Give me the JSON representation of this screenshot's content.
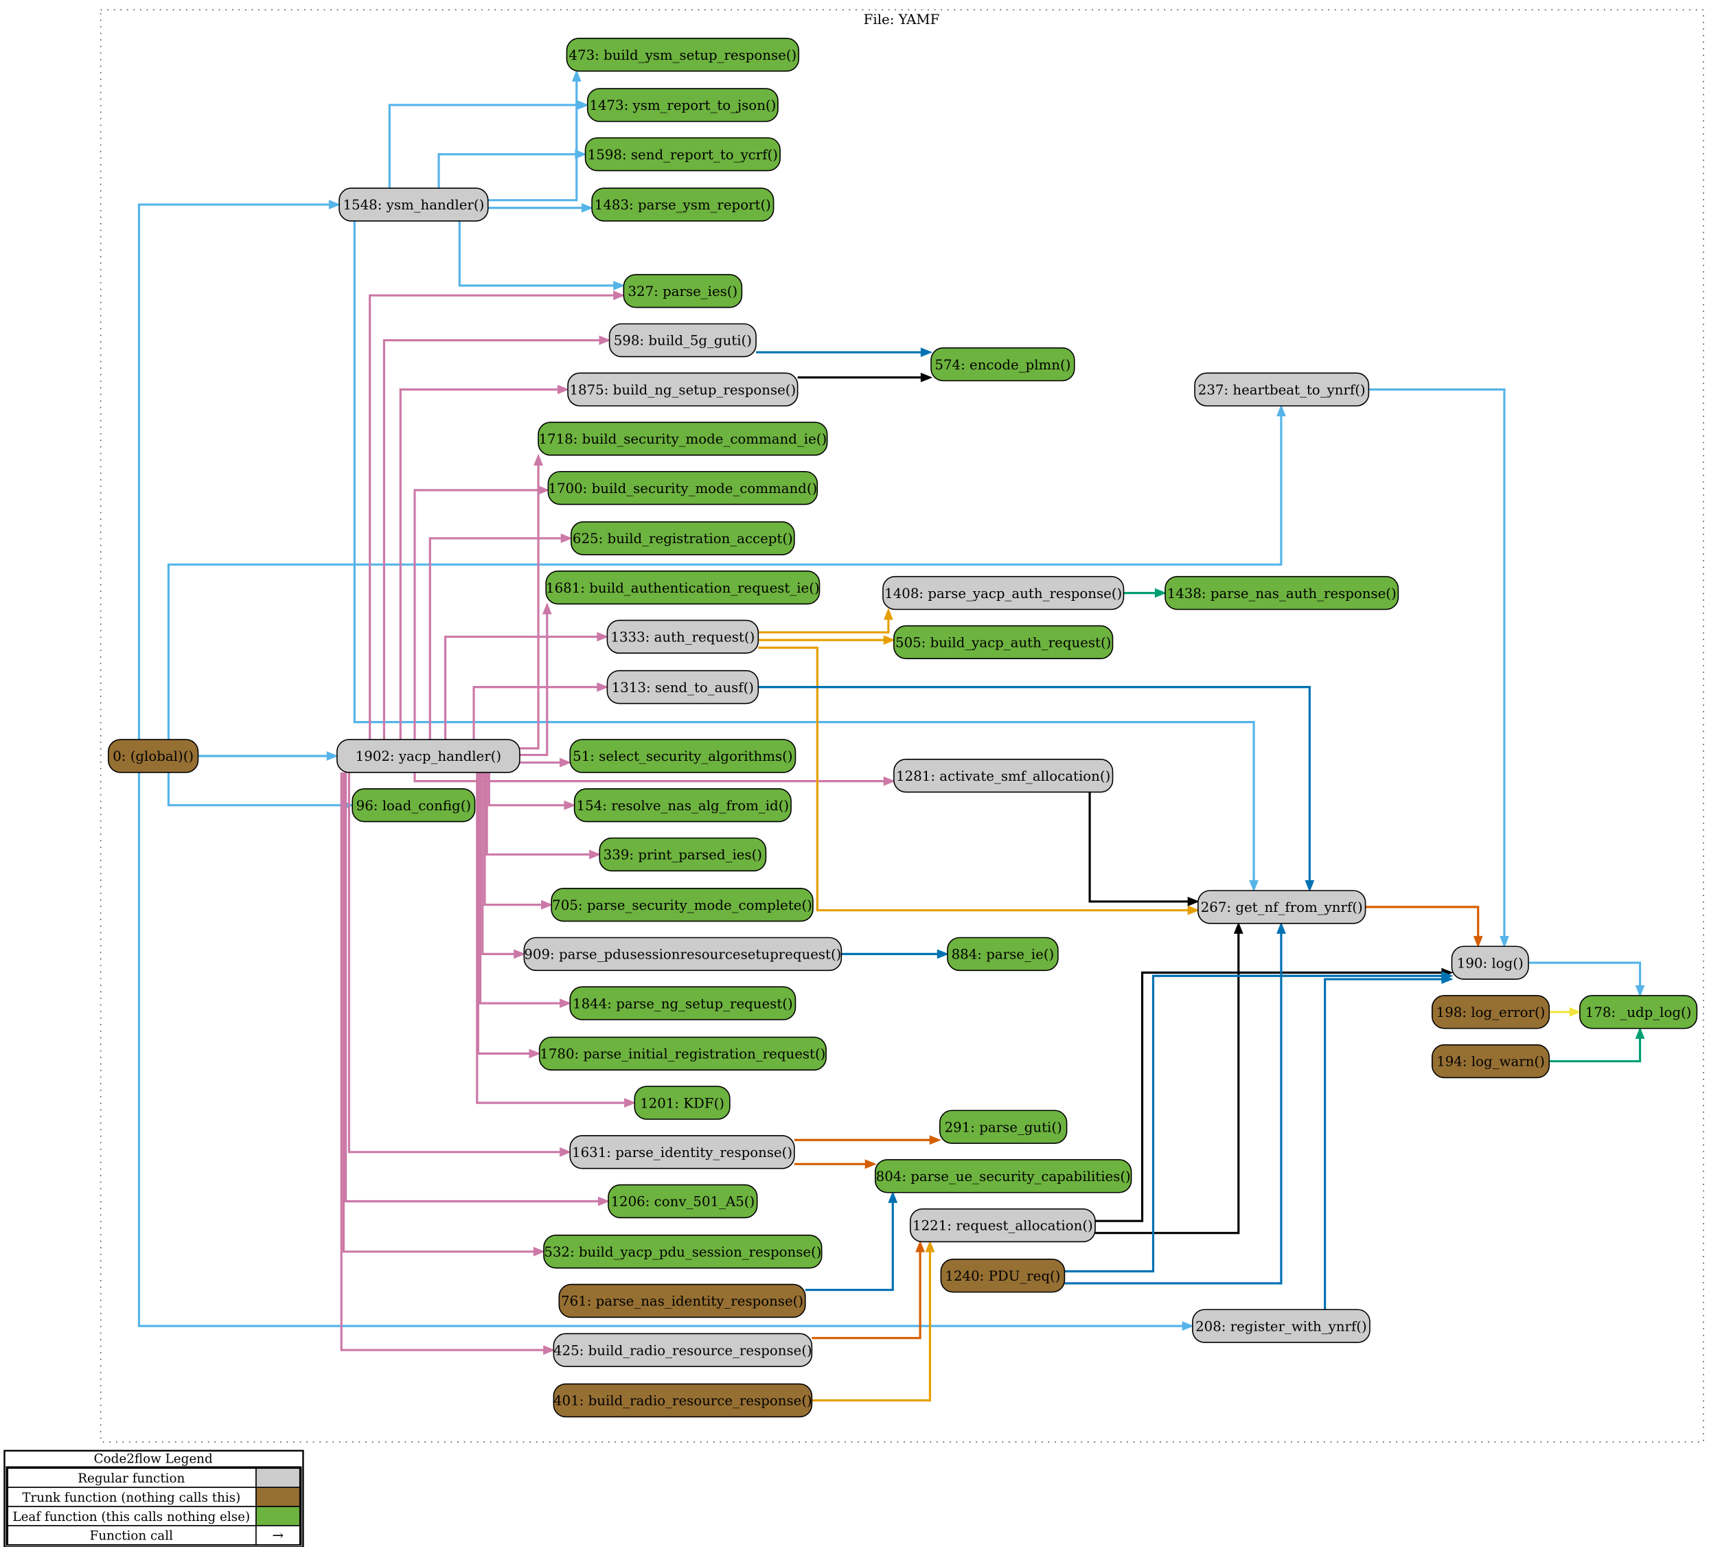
{
  "cluster_title": "File: YAMF",
  "colors": {
    "regular": "#cccccc",
    "trunk": "#966F33",
    "leaf": "#6db33f"
  },
  "nodes": [
    {
      "id": "473",
      "label": "473: build_ysm_setup_response()",
      "kind": "leaf"
    },
    {
      "id": "1473",
      "label": "1473: ysm_report_to_json()",
      "kind": "leaf"
    },
    {
      "id": "1598",
      "label": "1598: send_report_to_ycrf()",
      "kind": "leaf"
    },
    {
      "id": "1483",
      "label": "1483: parse_ysm_report()",
      "kind": "leaf"
    },
    {
      "id": "1548",
      "label": "1548: ysm_handler()",
      "kind": "regular"
    },
    {
      "id": "327",
      "label": "327: parse_ies()",
      "kind": "leaf"
    },
    {
      "id": "598",
      "label": "598: build_5g_guti()",
      "kind": "regular"
    },
    {
      "id": "574",
      "label": "574: encode_plmn()",
      "kind": "leaf"
    },
    {
      "id": "1875",
      "label": "1875: build_ng_setup_response()",
      "kind": "regular"
    },
    {
      "id": "237",
      "label": "237: heartbeat_to_ynrf()",
      "kind": "regular"
    },
    {
      "id": "1718",
      "label": "1718: build_security_mode_command_ie()",
      "kind": "leaf"
    },
    {
      "id": "1700",
      "label": "1700: build_security_mode_command()",
      "kind": "leaf"
    },
    {
      "id": "625",
      "label": "625: build_registration_accept()",
      "kind": "leaf"
    },
    {
      "id": "1681",
      "label": "1681: build_authentication_request_ie()",
      "kind": "leaf"
    },
    {
      "id": "1408",
      "label": "1408: parse_yacp_auth_response()",
      "kind": "regular"
    },
    {
      "id": "1438",
      "label": "1438: parse_nas_auth_response()",
      "kind": "leaf"
    },
    {
      "id": "1333",
      "label": "1333: auth_request()",
      "kind": "regular"
    },
    {
      "id": "505",
      "label": "505: build_yacp_auth_request()",
      "kind": "leaf"
    },
    {
      "id": "1313",
      "label": "1313: send_to_ausf()",
      "kind": "regular"
    },
    {
      "id": "0",
      "label": "0: (global)()",
      "kind": "trunk"
    },
    {
      "id": "1902",
      "label": "1902: yacp_handler()",
      "kind": "regular"
    },
    {
      "id": "51",
      "label": "51: select_security_algorithms()",
      "kind": "leaf"
    },
    {
      "id": "1281",
      "label": "1281: activate_smf_allocation()",
      "kind": "regular"
    },
    {
      "id": "96",
      "label": "96: load_config()",
      "kind": "leaf"
    },
    {
      "id": "154",
      "label": "154: resolve_nas_alg_from_id()",
      "kind": "leaf"
    },
    {
      "id": "339",
      "label": "339: print_parsed_ies()",
      "kind": "leaf"
    },
    {
      "id": "705",
      "label": "705: parse_security_mode_complete()",
      "kind": "leaf"
    },
    {
      "id": "267",
      "label": "267: get_nf_from_ynrf()",
      "kind": "regular"
    },
    {
      "id": "909",
      "label": "909: parse_pdusessionresourcesetuprequest()",
      "kind": "regular"
    },
    {
      "id": "884",
      "label": "884: parse_ie()",
      "kind": "leaf"
    },
    {
      "id": "190",
      "label": "190: log()",
      "kind": "regular"
    },
    {
      "id": "198",
      "label": "198: log_error()",
      "kind": "trunk"
    },
    {
      "id": "178",
      "label": "178: _udp_log()",
      "kind": "leaf"
    },
    {
      "id": "194",
      "label": "194: log_warn()",
      "kind": "trunk"
    },
    {
      "id": "1844",
      "label": "1844: parse_ng_setup_request()",
      "kind": "leaf"
    },
    {
      "id": "1780",
      "label": "1780: parse_initial_registration_request()",
      "kind": "leaf"
    },
    {
      "id": "1201",
      "label": "1201: KDF()",
      "kind": "leaf"
    },
    {
      "id": "291",
      "label": "291: parse_guti()",
      "kind": "leaf"
    },
    {
      "id": "1631",
      "label": "1631: parse_identity_response()",
      "kind": "regular"
    },
    {
      "id": "804",
      "label": "804: parse_ue_security_capabilities()",
      "kind": "leaf"
    },
    {
      "id": "1206",
      "label": "1206: conv_501_A5()",
      "kind": "leaf"
    },
    {
      "id": "1221",
      "label": "1221: request_allocation()",
      "kind": "regular"
    },
    {
      "id": "532",
      "label": "532: build_yacp_pdu_session_response()",
      "kind": "leaf"
    },
    {
      "id": "1240",
      "label": "1240: PDU_req()",
      "kind": "trunk"
    },
    {
      "id": "761",
      "label": "761: parse_nas_identity_response()",
      "kind": "trunk"
    },
    {
      "id": "208",
      "label": "208: register_with_ynrf()",
      "kind": "regular"
    },
    {
      "id": "425",
      "label": "425: build_radio_resource_response()",
      "kind": "regular"
    },
    {
      "id": "401",
      "label": "401: build_radio_resource_response()",
      "kind": "trunk"
    }
  ],
  "edges": [
    {
      "from": "1548",
      "to": "473",
      "color": "#56b4e9"
    },
    {
      "from": "1548",
      "to": "1473",
      "color": "#56b4e9"
    },
    {
      "from": "1548",
      "to": "1598",
      "color": "#56b4e9"
    },
    {
      "from": "1548",
      "to": "1483",
      "color": "#56b4e9"
    },
    {
      "from": "1548",
      "to": "327",
      "color": "#56b4e9"
    },
    {
      "from": "1548",
      "to": "267",
      "color": "#56b4e9"
    },
    {
      "from": "0",
      "to": "1548",
      "color": "#56b4e9"
    },
    {
      "from": "0",
      "to": "1902",
      "color": "#56b4e9"
    },
    {
      "from": "0",
      "to": "237",
      "color": "#56b4e9"
    },
    {
      "from": "0",
      "to": "96",
      "color": "#56b4e9"
    },
    {
      "from": "0",
      "to": "208",
      "color": "#56b4e9"
    },
    {
      "from": "1902",
      "to": "327",
      "color": "#cc79a7"
    },
    {
      "from": "1902",
      "to": "598",
      "color": "#cc79a7"
    },
    {
      "from": "1902",
      "to": "1875",
      "color": "#cc79a7"
    },
    {
      "from": "1902",
      "to": "1700",
      "color": "#cc79a7"
    },
    {
      "from": "1902",
      "to": "625",
      "color": "#cc79a7"
    },
    {
      "from": "1902",
      "to": "1333",
      "color": "#cc79a7"
    },
    {
      "from": "1902",
      "to": "1313",
      "color": "#cc79a7"
    },
    {
      "from": "1902",
      "to": "1718",
      "color": "#cc79a7"
    },
    {
      "from": "1902",
      "to": "1681",
      "color": "#cc79a7"
    },
    {
      "from": "1902",
      "to": "51",
      "color": "#cc79a7"
    },
    {
      "from": "1902",
      "to": "1281",
      "color": "#cc79a7"
    },
    {
      "from": "1902",
      "to": "154",
      "color": "#cc79a7"
    },
    {
      "from": "1902",
      "to": "339",
      "color": "#cc79a7"
    },
    {
      "from": "1902",
      "to": "705",
      "color": "#cc79a7"
    },
    {
      "from": "1902",
      "to": "909",
      "color": "#cc79a7"
    },
    {
      "from": "1902",
      "to": "1844",
      "color": "#cc79a7"
    },
    {
      "from": "1902",
      "to": "1780",
      "color": "#cc79a7"
    },
    {
      "from": "1902",
      "to": "1201",
      "color": "#cc79a7"
    },
    {
      "from": "1902",
      "to": "1631",
      "color": "#cc79a7"
    },
    {
      "from": "1902",
      "to": "1206",
      "color": "#cc79a7"
    },
    {
      "from": "1902",
      "to": "532",
      "color": "#cc79a7"
    },
    {
      "from": "1902",
      "to": "425",
      "color": "#cc79a7"
    },
    {
      "from": "598",
      "to": "574",
      "color": "#0072b2"
    },
    {
      "from": "1875",
      "to": "574",
      "color": "#000000"
    },
    {
      "from": "1333",
      "to": "1408",
      "color": "#e69f00"
    },
    {
      "from": "1333",
      "to": "505",
      "color": "#e69f00"
    },
    {
      "from": "1333",
      "to": "267",
      "color": "#e69f00"
    },
    {
      "from": "1408",
      "to": "1438",
      "color": "#009e73"
    },
    {
      "from": "1313",
      "to": "267",
      "color": "#0072b2"
    },
    {
      "from": "1281",
      "to": "267",
      "color": "#000000"
    },
    {
      "from": "909",
      "to": "884",
      "color": "#0072b2"
    },
    {
      "from": "267",
      "to": "190",
      "color": "#d55e00"
    },
    {
      "from": "237",
      "to": "190",
      "color": "#56b4e9"
    },
    {
      "from": "190",
      "to": "178",
      "color": "#56b4e9"
    },
    {
      "from": "198",
      "to": "178",
      "color": "#f0e442"
    },
    {
      "from": "194",
      "to": "178",
      "color": "#009e73"
    },
    {
      "from": "1631",
      "to": "291",
      "color": "#d55e00"
    },
    {
      "from": "1631",
      "to": "804",
      "color": "#d55e00"
    },
    {
      "from": "1221",
      "to": "190",
      "color": "#000000"
    },
    {
      "from": "1221",
      "to": "267",
      "color": "#000000"
    },
    {
      "from": "1240",
      "to": "190",
      "color": "#0072b2"
    },
    {
      "from": "1240",
      "to": "267",
      "color": "#0072b2"
    },
    {
      "from": "761",
      "to": "804",
      "color": "#0072b2"
    },
    {
      "from": "208",
      "to": "190",
      "color": "#0072b2"
    },
    {
      "from": "425",
      "to": "1221",
      "color": "#d55e00"
    },
    {
      "from": "401",
      "to": "1221",
      "color": "#e69f00"
    }
  ],
  "legend": {
    "title": "Code2flow Legend",
    "rows": [
      {
        "label": "Regular function",
        "swatch": "regular"
      },
      {
        "label": "Trunk function (nothing calls this)",
        "swatch": "trunk"
      },
      {
        "label": "Leaf function (this calls nothing else)",
        "swatch": "leaf"
      },
      {
        "label": "Function call",
        "symbol": "→"
      }
    ]
  }
}
